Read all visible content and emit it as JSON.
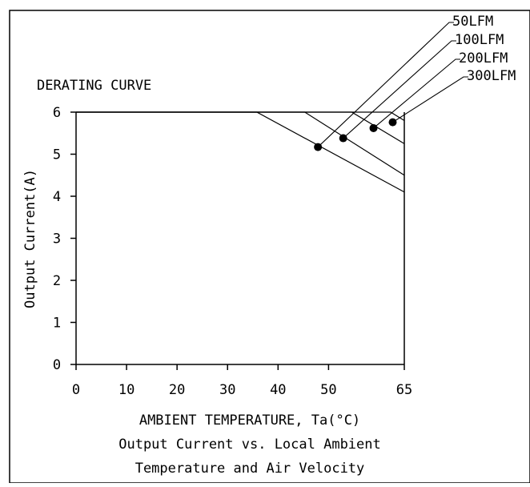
{
  "chart_data": {
    "type": "line",
    "title": "DERATING CURVE",
    "xlabel": "AMBIENT TEMPERATURE, Ta(°C)",
    "ylabel": "Output Current(A)",
    "caption_lines": [
      "Output Current vs. Local Ambient",
      "Temperature and Air Velocity"
    ],
    "xlim": [
      0,
      65
    ],
    "ylim": [
      0,
      6
    ],
    "x_ticks": [
      0,
      10,
      20,
      30,
      40,
      50,
      65
    ],
    "x_tick_labels": [
      "0",
      "10",
      "20",
      "30",
      "40",
      "50",
      "65"
    ],
    "y_ticks": [
      0,
      1,
      2,
      3,
      4,
      5,
      6
    ],
    "y_tick_labels": [
      "0",
      "1",
      "2",
      "3",
      "4",
      "5",
      "6"
    ],
    "grid": false,
    "series": [
      {
        "name": "50LFM",
        "x": [
          0,
          35.8,
          65
        ],
        "y": [
          6,
          6,
          4.1
        ],
        "marker": {
          "x": 47.9,
          "y": 5.17
        }
      },
      {
        "name": "100LFM",
        "x": [
          0,
          45.3,
          65
        ],
        "y": [
          6,
          6,
          4.5
        ],
        "marker": {
          "x": 52.9,
          "y": 5.38
        }
      },
      {
        "name": "200LFM",
        "x": [
          0,
          54.6,
          65
        ],
        "y": [
          6,
          6,
          5.25
        ],
        "marker": {
          "x": 58.9,
          "y": 5.62
        }
      },
      {
        "name": "300LFM",
        "x": [
          0,
          62.3,
          65
        ],
        "y": [
          6,
          6,
          5.8
        ],
        "marker": {
          "x": 62.7,
          "y": 5.76
        }
      }
    ],
    "legend_placement": "top-right, with leader lines to markers"
  }
}
